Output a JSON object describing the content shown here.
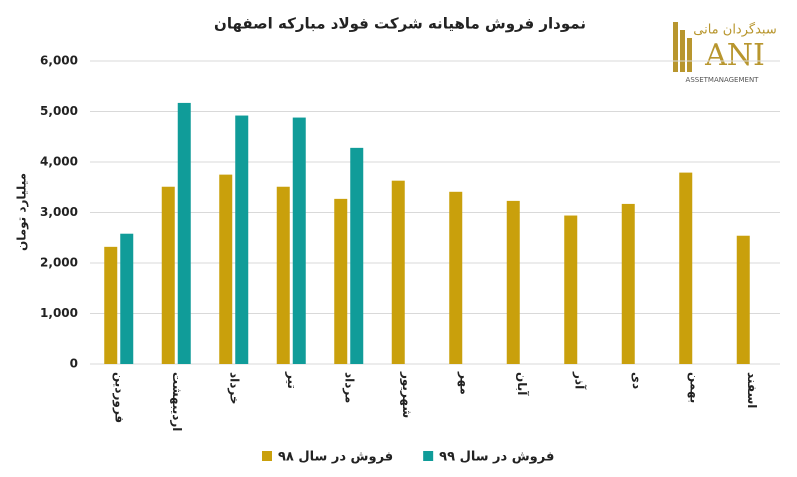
{
  "chart_data": {
    "type": "bar",
    "title": "نمودار فروش ماهیانه شرکت فولاد مبارکه اصفهان",
    "y_label": "میلیارد تومان",
    "categories": [
      "فروردین",
      "اردیبهشت",
      "خرداد",
      "تیر",
      "مرداد",
      "شهریور",
      "مهر",
      "آبان",
      "آذر",
      "دی",
      "بهمن",
      "اسفند"
    ],
    "series": [
      {
        "name": "فروش در سال ۹۸",
        "color": "#c9a00c",
        "values": [
          2320,
          3510,
          3750,
          3510,
          3270,
          3630,
          3410,
          3230,
          2940,
          3170,
          3790,
          2540
        ]
      },
      {
        "name": "فروش در سال ۹۹",
        "color": "#109c99",
        "values": [
          2580,
          5170,
          4920,
          4880,
          4280,
          null,
          null,
          null,
          null,
          null,
          null,
          null
        ]
      }
    ],
    "ylim": [
      0,
      6000
    ],
    "yticks": [
      0,
      {
        "value": 1000,
        "label": "1,000"
      },
      {
        "value": 2000,
        "label": "2,000"
      },
      {
        "value": 3000,
        "label": "3,000"
      },
      {
        "value": 4000,
        "label": "4,000"
      },
      {
        "value": 5000,
        "label": "5,000"
      },
      {
        "value": 6000,
        "label": "6,000"
      }
    ],
    "grid": true,
    "legend": "bottom"
  },
  "logo": {
    "name": "سبدگردان مانی",
    "mark": "ANI",
    "tagline": "ASSETMANAGEMENT"
  }
}
